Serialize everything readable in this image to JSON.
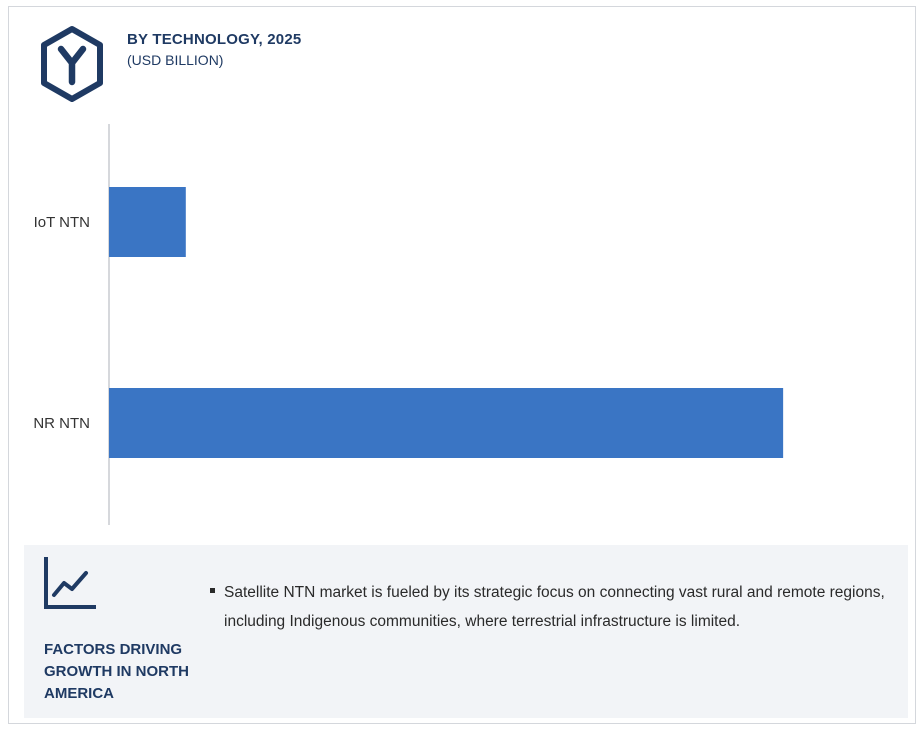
{
  "header": {
    "title": "BY TECHNOLOGY, 2025",
    "subtitle": "(USD BILLION)",
    "icon": "hexagon-y-icon"
  },
  "chart_data": {
    "type": "bar",
    "orientation": "horizontal",
    "categories": [
      "IoT NTN",
      "NR NTN"
    ],
    "values": [
      0.9,
      7.9
    ],
    "title": "BY TECHNOLOGY, 2025",
    "subtitle": "(USD BILLION)",
    "xlabel": "",
    "ylabel": "",
    "xlim": [
      0,
      9
    ],
    "grid": false,
    "legend": "none",
    "bar_color": "#3a75c4"
  },
  "footer": {
    "icon": "trend-chart-icon",
    "title": "FACTORS DRIVING GROWTH IN NORTH AMERICA",
    "bullets": [
      "Satellite NTN market is fueled by its strategic focus on connecting vast rural and remote regions, including Indigenous communities, where terrestrial infrastructure is limited."
    ]
  },
  "colors": {
    "accent": "#1f3a63",
    "bar": "#3a75c4",
    "footer_bg": "#f2f4f7"
  }
}
